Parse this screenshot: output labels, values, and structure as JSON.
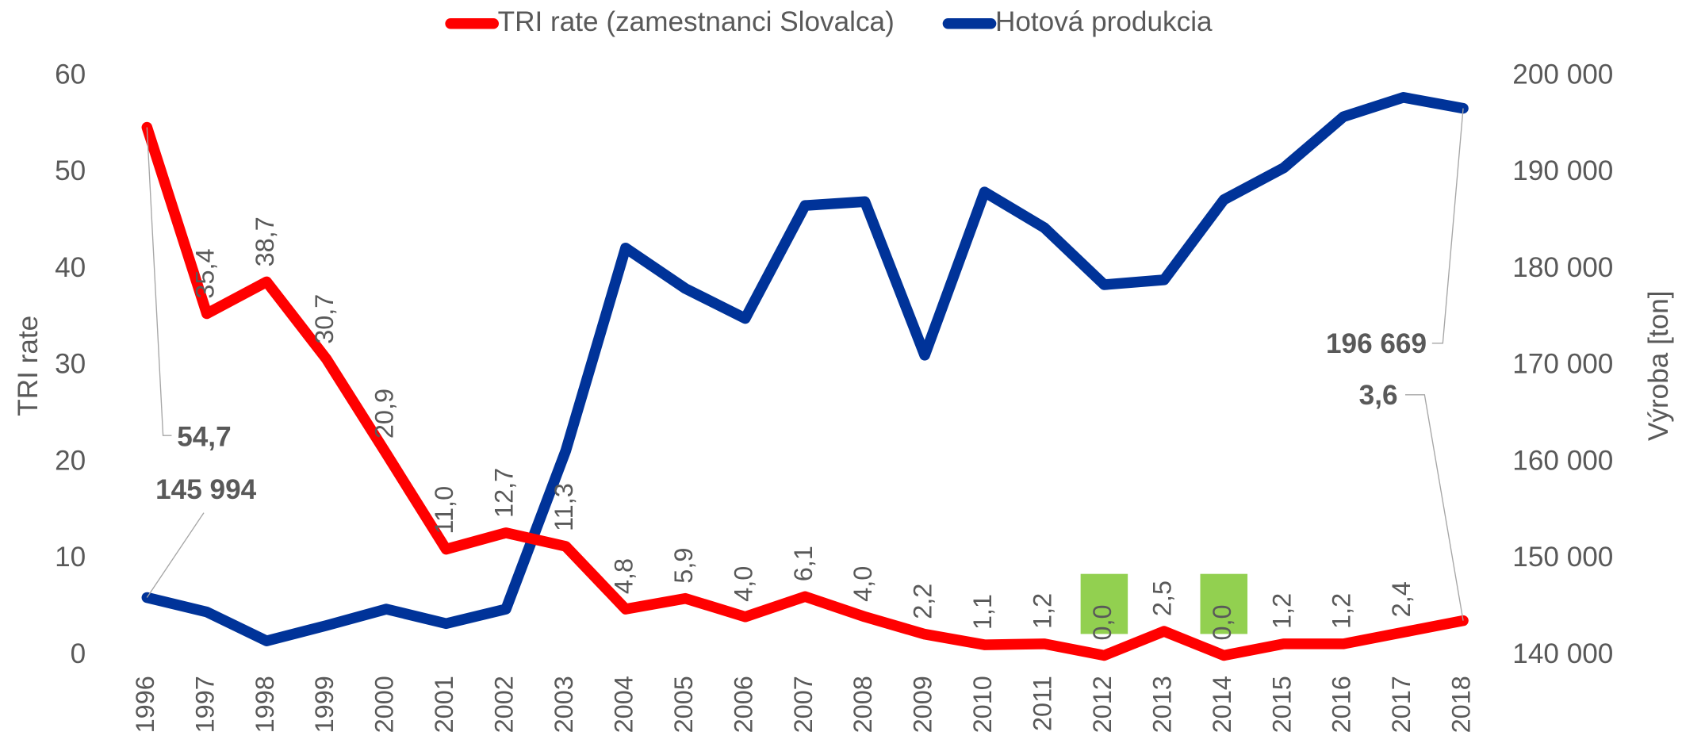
{
  "chart_data": {
    "type": "line",
    "categories": [
      "1996",
      "1997",
      "1998",
      "1999",
      "2000",
      "2001",
      "2002",
      "2003",
      "2004",
      "2005",
      "2006",
      "2007",
      "2008",
      "2009",
      "2010",
      "2011",
      "2012",
      "2013",
      "2014",
      "2015",
      "2016",
      "2017",
      "2018"
    ],
    "ylabel": "TRI rate",
    "y2label": "Výroba [ton]",
    "ylim": [
      0,
      60
    ],
    "yticks": [
      0,
      10,
      20,
      30,
      40,
      50,
      60
    ],
    "y2lim": [
      140000,
      200000
    ],
    "y2ticks": [
      {
        "value": 140000,
        "label": "140 000"
      },
      {
        "value": 150000,
        "label": "150 000"
      },
      {
        "value": 160000,
        "label": "160 000"
      },
      {
        "value": 170000,
        "label": "170 000"
      },
      {
        "value": 180000,
        "label": "180 000"
      },
      {
        "value": 190000,
        "label": "190 000"
      },
      {
        "value": 200000,
        "label": "200 000"
      }
    ],
    "legend": "top",
    "grid": false,
    "series": [
      {
        "name": "TRI rate (zamestnanci Slovalca)",
        "color": "#ff0000",
        "values": [
          54.7,
          35.4,
          38.7,
          30.7,
          20.9,
          11.0,
          12.7,
          11.3,
          4.8,
          5.9,
          4.0,
          6.1,
          4.0,
          2.2,
          1.1,
          1.2,
          0.0,
          2.5,
          0.0,
          1.2,
          1.2,
          2.4,
          3.6
        ],
        "value_labels": [
          "54,7",
          "35,4",
          "38,7",
          "30,7",
          "20,9",
          "11,0",
          "12,7",
          "11,3",
          "4,8",
          "5,9",
          "4,0",
          "6,1",
          "4,0",
          "2,2",
          "1,1",
          "1,2",
          "0,0",
          "2,5",
          "0,0",
          "1,2",
          "1,2",
          "2,4",
          "3,6"
        ]
      },
      {
        "name": "Hotová produkcia",
        "color": "#003399",
        "axis": "y2",
        "values": [
          145994,
          144500,
          141500,
          143100,
          144800,
          143300,
          144800,
          161200,
          182200,
          178000,
          174900,
          186600,
          187000,
          171100,
          188000,
          184300,
          178400,
          178900,
          187200,
          190500,
          195800,
          197800,
          196669
        ],
        "value_labels": [
          "145 994",
          null,
          null,
          null,
          null,
          null,
          null,
          null,
          null,
          null,
          null,
          null,
          null,
          null,
          null,
          null,
          null,
          null,
          null,
          null,
          null,
          null,
          "196 669"
        ]
      }
    ]
  }
}
